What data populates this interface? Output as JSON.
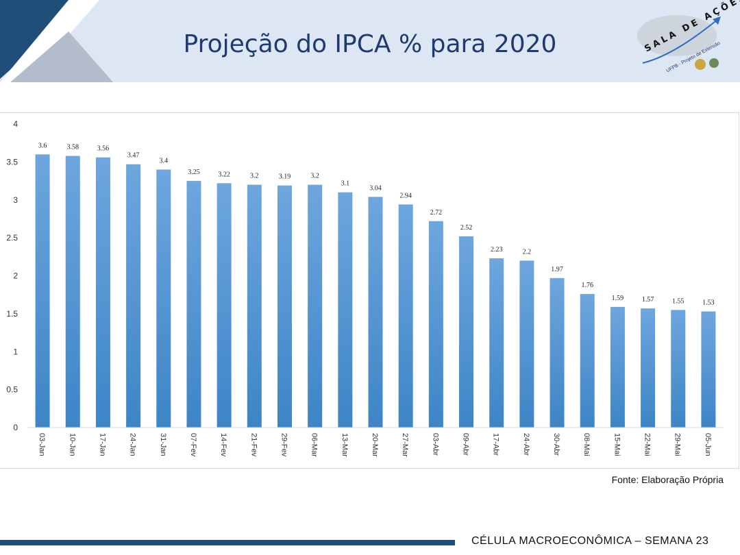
{
  "header": {
    "title": "Projeção do IPCA % para 2020",
    "logo_text": "SALA DE AÇÕES",
    "logo_subtitle": "UFPB - Projeto de Extensão"
  },
  "chart_data": {
    "type": "bar",
    "title": "",
    "xlabel": "",
    "ylabel": "",
    "ylim": [
      0,
      4
    ],
    "yticks": [
      "0",
      "0.5",
      "1",
      "1.5",
      "2",
      "2.5",
      "3",
      "3.5",
      "4"
    ],
    "grid": false,
    "legend": "none",
    "bar_color": "#5b9bd5",
    "categories": [
      "03-Jan",
      "10-Jan",
      "17-Jan",
      "24-Jan",
      "31-Jan",
      "07-Fev",
      "14-Fev",
      "21-Fev",
      "29-Fev",
      "06-Mar",
      "13-Mar",
      "20-Mar",
      "27-Mar",
      "03-Abr",
      "09-Abr",
      "17-Abr",
      "24-Abr",
      "30-Abr",
      "08-Mai",
      "15-Mai",
      "22-Mai",
      "29-Mai",
      "05-Jun"
    ],
    "values": [
      3.6,
      3.58,
      3.56,
      3.47,
      3.4,
      3.25,
      3.22,
      3.2,
      3.19,
      3.2,
      3.1,
      3.04,
      2.94,
      2.72,
      2.52,
      2.23,
      2.2,
      1.97,
      1.76,
      1.59,
      1.57,
      1.55,
      1.53
    ],
    "data_labels": [
      "3.6",
      "3.58",
      "3.56",
      "3.47",
      "3.4",
      "3.25",
      "3.22",
      "3.2",
      "3.19",
      "3.2",
      "3.1",
      "3.04",
      "2.94",
      "2.72",
      "2.52",
      "2.23",
      "2.2",
      "1.97",
      "1.76",
      "1.59",
      "1.57",
      "1.55",
      "1.53"
    ]
  },
  "source": "Fonte: Elaboração Própria",
  "footer": "CÉLULA MACROECONÔMICA – SEMANA 23"
}
